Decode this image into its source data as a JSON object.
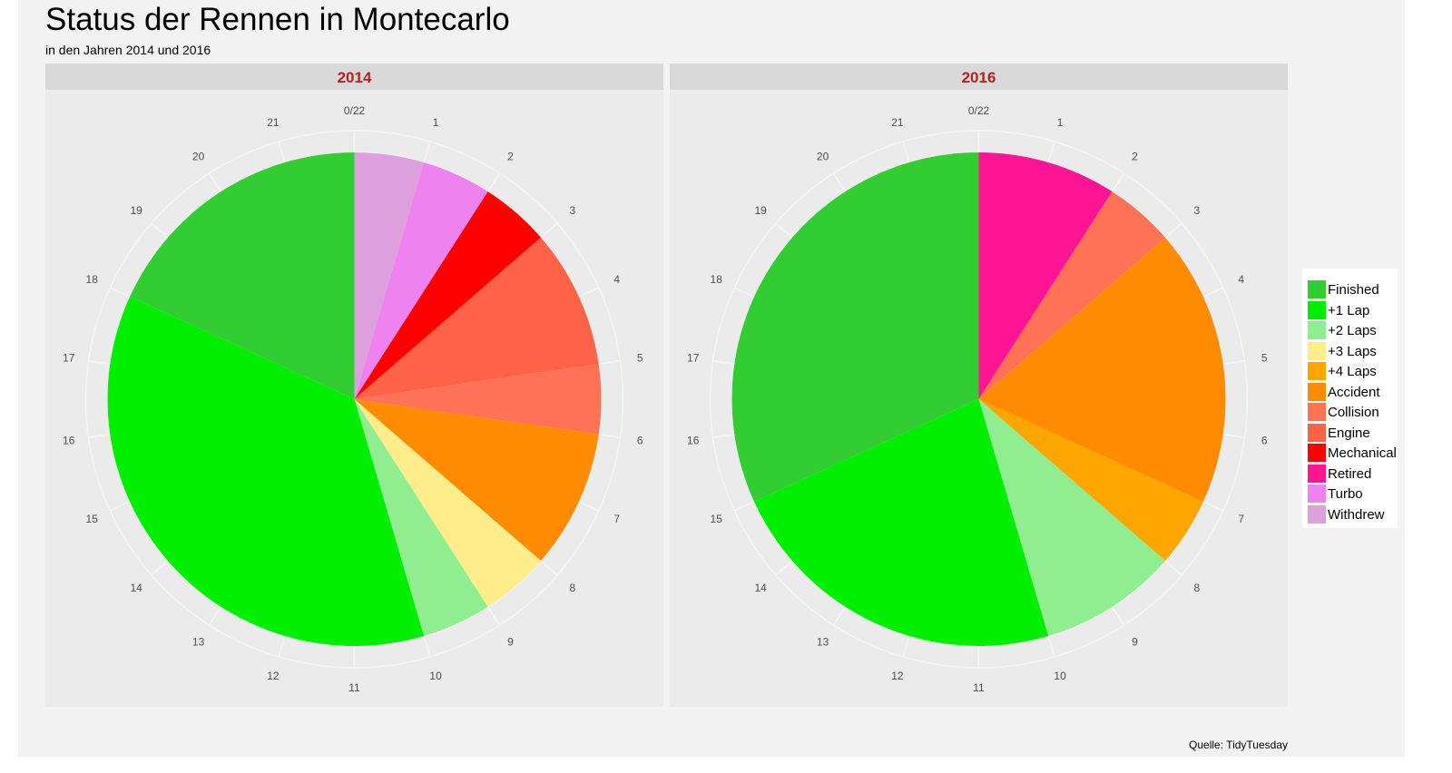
{
  "title": "Status der Rennen in Montecarlo",
  "subtitle": "in den Jahren 2014 und 2016",
  "caption": "Quelle: TidyTuesday",
  "legend": [
    {
      "label": "Finished",
      "color": "#32cd32"
    },
    {
      "label": "+1 Lap",
      "color": "#00ee00"
    },
    {
      "label": "+2 Laps",
      "color": "#90ee90"
    },
    {
      "label": "+3 Laps",
      "color": "#ffec8b"
    },
    {
      "label": "+4 Laps",
      "color": "#ffa500"
    },
    {
      "label": "Accident",
      "color": "#ff8c00"
    },
    {
      "label": "Collision",
      "color": "#ff7256"
    },
    {
      "label": "Engine",
      "color": "#ff6347"
    },
    {
      "label": "Mechanical",
      "color": "#ff0000"
    },
    {
      "label": "Retired",
      "color": "#ff1493"
    },
    {
      "label": "Turbo",
      "color": "#ee82ee"
    },
    {
      "label": "Withdrew",
      "color": "#dda0dd"
    }
  ],
  "chart_data": [
    {
      "type": "pie",
      "panel": "2014",
      "total": 22,
      "tick_labels": [
        "0/22",
        "1",
        "2",
        "3",
        "4",
        "5",
        "6",
        "7",
        "8",
        "9",
        "10",
        "11",
        "12",
        "13",
        "14",
        "15",
        "16",
        "17",
        "18",
        "19",
        "20",
        "21"
      ],
      "slices": [
        {
          "label": "Withdrew",
          "value": 1
        },
        {
          "label": "Turbo",
          "value": 1
        },
        {
          "label": "Mechanical",
          "value": 1
        },
        {
          "label": "Engine",
          "value": 2
        },
        {
          "label": "Collision",
          "value": 1
        },
        {
          "label": "Accident",
          "value": 2
        },
        {
          "label": "+3 Laps",
          "value": 1
        },
        {
          "label": "+2 Laps",
          "value": 1
        },
        {
          "label": "+1 Lap",
          "value": 8
        },
        {
          "label": "Finished",
          "value": 4
        }
      ]
    },
    {
      "type": "pie",
      "panel": "2016",
      "total": 22,
      "tick_labels": [
        "0/22",
        "1",
        "2",
        "3",
        "4",
        "5",
        "6",
        "7",
        "8",
        "9",
        "10",
        "11",
        "12",
        "13",
        "14",
        "15",
        "16",
        "17",
        "18",
        "19",
        "20",
        "21"
      ],
      "slices": [
        {
          "label": "Retired",
          "value": 2
        },
        {
          "label": "Collision",
          "value": 1
        },
        {
          "label": "Accident",
          "value": 4
        },
        {
          "label": "+4 Laps",
          "value": 1
        },
        {
          "label": "+2 Laps",
          "value": 2
        },
        {
          "label": "+1 Lap",
          "value": 5
        },
        {
          "label": "Finished",
          "value": 7
        }
      ]
    }
  ]
}
